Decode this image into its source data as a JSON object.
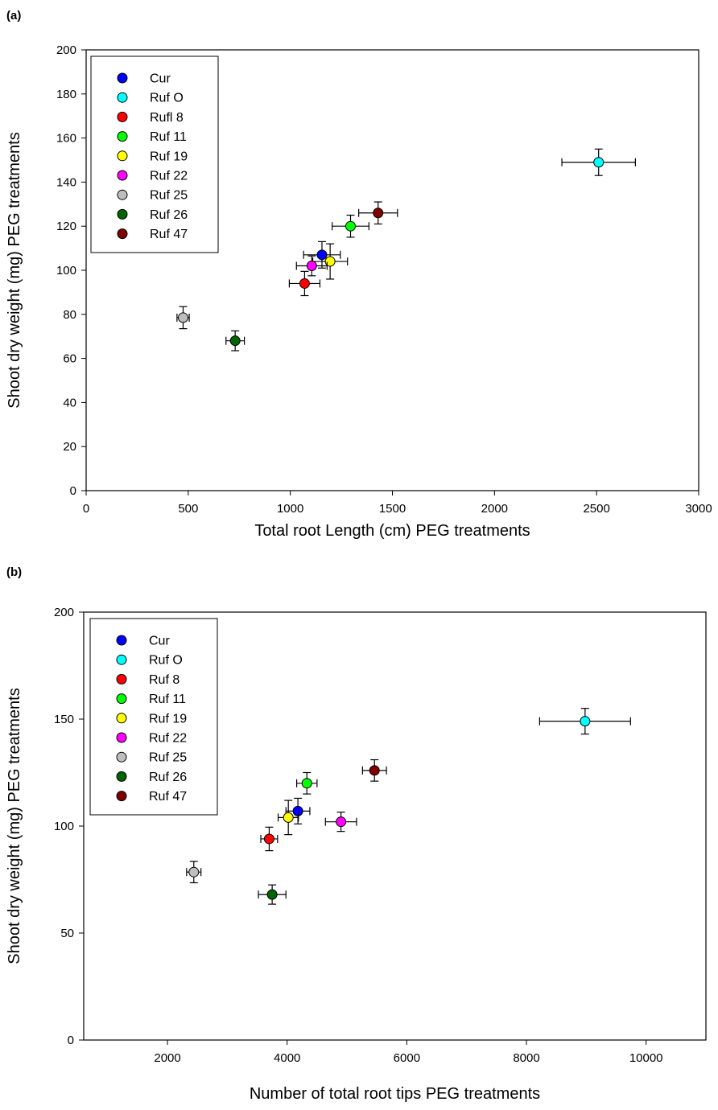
{
  "chart_data": [
    {
      "panel_label": "(a)",
      "type": "scatter",
      "xlabel": "Total root Length (cm) PEG treatments",
      "ylabel": "Shoot dry weight (mg) PEG treatments",
      "xlim": [
        0,
        3000
      ],
      "ylim": [
        0,
        200
      ],
      "x_ticks": [
        0,
        500,
        1000,
        1500,
        2000,
        2500,
        3000
      ],
      "y_ticks": [
        0,
        20,
        40,
        60,
        80,
        100,
        120,
        140,
        160,
        180,
        200
      ],
      "grid": false,
      "legend_position": "top-left",
      "series": [
        {
          "name": "Cur",
          "color": "#0000FF",
          "x": 1155,
          "y": 107,
          "x_err": 90,
          "y_err": 6
        },
        {
          "name": "Ruf O",
          "color": "#00FFFF",
          "x": 2510,
          "y": 149,
          "x_err": 180,
          "y_err": 6
        },
        {
          "name": "Rufl 8",
          "color": "#FF0000",
          "x": 1070,
          "y": 94,
          "x_err": 75,
          "y_err": 5.5
        },
        {
          "name": "Ruf 11",
          "color": "#00FF00",
          "x": 1295,
          "y": 120,
          "x_err": 90,
          "y_err": 5
        },
        {
          "name": "Ruf 19",
          "color": "#FFFF00",
          "x": 1195,
          "y": 104,
          "x_err": 85,
          "y_err": 8
        },
        {
          "name": "Ruf 22",
          "color": "#FF00FF",
          "x": 1105,
          "y": 102,
          "x_err": 75,
          "y_err": 4.5
        },
        {
          "name": "Ruf 25",
          "color": "#BEBEBE",
          "x": 475,
          "y": 78.5,
          "x_err": 30,
          "y_err": 5
        },
        {
          "name": "Ruf 26",
          "color": "#006400",
          "x": 730,
          "y": 68,
          "x_err": 45,
          "y_err": 4.5
        },
        {
          "name": "Ruf 47",
          "color": "#800000",
          "x": 1430,
          "y": 126,
          "x_err": 95,
          "y_err": 5
        }
      ]
    },
    {
      "panel_label": "(b)",
      "type": "scatter",
      "xlabel": "Number of total root tips PEG treatments",
      "ylabel": "Shoot dry weight (mg) PEG treatments",
      "xlim": [
        600,
        11000
      ],
      "ylim": [
        0,
        200
      ],
      "x_ticks": [
        2000,
        4000,
        6000,
        8000,
        10000
      ],
      "y_ticks": [
        0,
        50,
        100,
        150,
        200
      ],
      "grid": false,
      "legend_position": "top-left",
      "series": [
        {
          "name": "Cur",
          "color": "#0000FF",
          "x": 4180,
          "y": 107,
          "x_err": 200,
          "y_err": 6
        },
        {
          "name": "Ruf O",
          "color": "#00FFFF",
          "x": 8980,
          "y": 149,
          "x_err": 760,
          "y_err": 6
        },
        {
          "name": "Ruf 8",
          "color": "#FF0000",
          "x": 3700,
          "y": 94,
          "x_err": 140,
          "y_err": 5.5
        },
        {
          "name": "Ruf 11",
          "color": "#00FF00",
          "x": 4330,
          "y": 120,
          "x_err": 170,
          "y_err": 5
        },
        {
          "name": "Ruf 19",
          "color": "#FFFF00",
          "x": 4020,
          "y": 104,
          "x_err": 170,
          "y_err": 8
        },
        {
          "name": "Ruf 22",
          "color": "#FF00FF",
          "x": 4900,
          "y": 102,
          "x_err": 260,
          "y_err": 4.5
        },
        {
          "name": "Ruf 25",
          "color": "#BEBEBE",
          "x": 2440,
          "y": 78.5,
          "x_err": 120,
          "y_err": 5
        },
        {
          "name": "Ruf 26",
          "color": "#006400",
          "x": 3750,
          "y": 68,
          "x_err": 230,
          "y_err": 4.5
        },
        {
          "name": "Ruf 47",
          "color": "#800000",
          "x": 5460,
          "y": 126,
          "x_err": 200,
          "y_err": 5
        }
      ]
    }
  ]
}
